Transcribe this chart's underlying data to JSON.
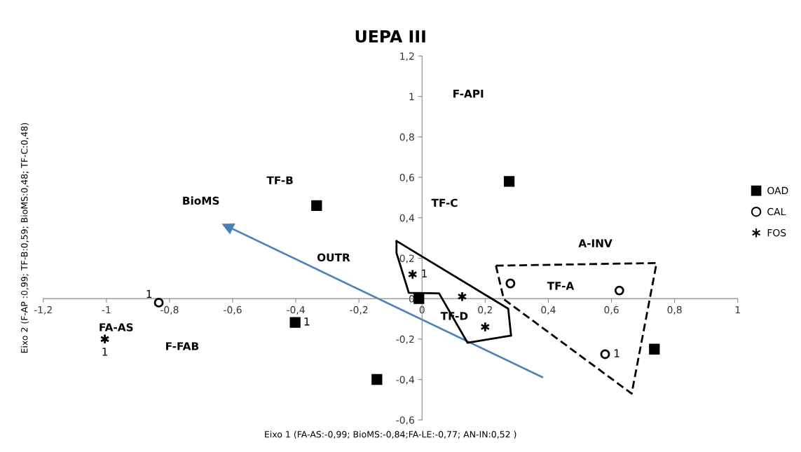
{
  "chart_data": {
    "type": "scatter",
    "title": "UEPA III",
    "xlabel": "Eixo 1 (FA-AS:-0,99; BioMS:-0,84;FA-LE:-0,77; AN-IN:0,52 )",
    "ylabel": "Eixo 2 (F-AP :0,99; TF-B:0,59; BioMS:0,48; TF-C:0,48)",
    "xlim": [
      -1.2,
      1
    ],
    "ylim": [
      -0.6,
      1.2
    ],
    "xticks": [
      {
        "value": -1.2,
        "label": "-1,2"
      },
      {
        "value": -1,
        "label": "-1"
      },
      {
        "value": -0.8,
        "label": "-0,8"
      },
      {
        "value": -0.6,
        "label": "-0,6"
      },
      {
        "value": -0.4,
        "label": "-0,4"
      },
      {
        "value": -0.2,
        "label": "-0,2"
      },
      {
        "value": 0,
        "label": "0"
      },
      {
        "value": 0.2,
        "label": "0,2"
      },
      {
        "value": 0.4,
        "label": "0,4"
      },
      {
        "value": 0.6,
        "label": "0,6"
      },
      {
        "value": 0.8,
        "label": "0,8"
      },
      {
        "value": 1,
        "label": "1"
      }
    ],
    "yticks": [
      {
        "value": -0.6,
        "label": "-0,6"
      },
      {
        "value": -0.4,
        "label": "-0,4"
      },
      {
        "value": -0.2,
        "label": "-0,2"
      },
      {
        "value": 0,
        "label": "0"
      },
      {
        "value": 0.2,
        "label": "0,2"
      },
      {
        "value": 0.4,
        "label": "0,4"
      },
      {
        "value": 0.6,
        "label": "0,6"
      },
      {
        "value": 0.8,
        "label": "0,8"
      },
      {
        "value": 1,
        "label": "1"
      },
      {
        "value": 1.2,
        "label": "1,2"
      }
    ],
    "grid": false,
    "legend": "right",
    "series": [
      {
        "name": "OAD",
        "marker": "square",
        "color": "#000000",
        "x": [
          0.276,
          -0.01,
          0.736,
          -0.143,
          -0.334,
          -0.402
        ],
        "values": [
          0.58,
          0.0,
          -0.25,
          -0.4,
          0.46,
          -0.118
        ]
      },
      {
        "name": "CAL",
        "marker": "circle",
        "color": "#000000",
        "x": [
          0.28,
          0.625,
          0.58,
          -0.834
        ],
        "values": [
          0.075,
          0.04,
          -0.275,
          -0.02
        ]
      },
      {
        "name": "FOS",
        "marker": "cross",
        "color": "#000000",
        "x": [
          -0.03,
          0.127,
          0.2,
          -1.005
        ],
        "values": [
          0.12,
          0.01,
          -0.14,
          -0.2
        ]
      },
      {
        "type": "line",
        "line_style": "solid",
        "color": "#000000",
        "x": [
          -0.081,
          0.273,
          0.282
        ],
        "values": [
          0.285,
          -0.05,
          -0.183
        ]
      },
      {
        "type": "line",
        "line_style": "solid",
        "color": "#000000",
        "x": [
          -0.081,
          -0.081,
          -0.042,
          0.054,
          0.144,
          0.282
        ],
        "values": [
          0.285,
          0.226,
          0.029,
          0.026,
          -0.218,
          -0.183
        ]
      },
      {
        "type": "line",
        "line_style": "dashed",
        "color": "#000000",
        "x": [
          0.234,
          0.743
        ],
        "values": [
          0.163,
          0.176
        ]
      },
      {
        "type": "line",
        "line_style": "dashed",
        "color": "#000000",
        "x": [
          0.234,
          0.259,
          0.664,
          0.743
        ],
        "values": [
          0.163,
          -0.003,
          -0.47,
          0.176
        ]
      }
    ],
    "annotations": [
      "F-API",
      "TF-C",
      "A-INV",
      "TF-A",
      "TF-D",
      "TF-B",
      "BioMS",
      "OUTR",
      "FA-AS",
      "F-FAB",
      {
        "text": "1",
        "x": -0.834,
        "y": -0.02
      },
      {
        "text": "1",
        "x": -1.005,
        "y": -0.2
      },
      {
        "text": "1",
        "x": -0.402,
        "y": -0.118
      },
      {
        "text": "1",
        "x": -0.03,
        "y": 0.12
      },
      {
        "text": "1",
        "x": 0.58,
        "y": -0.275
      }
    ]
  }
}
